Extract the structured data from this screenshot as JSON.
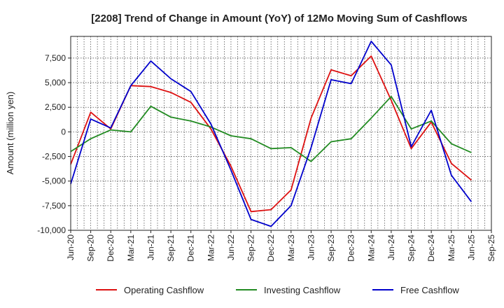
{
  "chart_data": {
    "type": "line",
    "title": "[2208]  Trend of Change in Amount (YoY) of 12Mo Moving Sum of Cashflows",
    "xlabel": "",
    "ylabel": "Amount (million yen)",
    "ylim": [
      -10000,
      9700
    ],
    "yticks": [
      -10000,
      -7500,
      -5000,
      -2500,
      0,
      2500,
      5000,
      7500
    ],
    "ytick_labels": [
      "-10,000",
      "-7,500",
      "-5,000",
      "-2,500",
      "0",
      "2,500",
      "5,000",
      "7,500"
    ],
    "categories": [
      "Jun-20",
      "Sep-20",
      "Dec-20",
      "Mar-21",
      "Jun-21",
      "Sep-21",
      "Dec-21",
      "Mar-22",
      "Jun-22",
      "Sep-22",
      "Dec-22",
      "Mar-23",
      "Jun-23",
      "Sep-23",
      "Dec-23",
      "Mar-24",
      "Jun-24",
      "Sep-24",
      "Dec-24",
      "Mar-25",
      "Jun-25",
      "Sep-25"
    ],
    "grid": true,
    "legend_position": "bottom",
    "series": [
      {
        "name": "Operating Cashflow",
        "color": "#dd1111",
        "values": [
          -3300,
          2000,
          300,
          4700,
          4600,
          4000,
          3000,
          300,
          -3500,
          -8100,
          -7900,
          -5900,
          1400,
          6300,
          5700,
          7700,
          3200,
          -1700,
          1000,
          -3200,
          -4900,
          null
        ]
      },
      {
        "name": "Investing Cashflow",
        "color": "#228b22",
        "values": [
          -2000,
          -700,
          200,
          0,
          2600,
          1500,
          1100,
          500,
          -400,
          -700,
          -1700,
          -1600,
          -3000,
          -1000,
          -700,
          1400,
          3600,
          300,
          1100,
          -1200,
          -2100,
          null
        ]
      },
      {
        "name": "Free Cashflow",
        "color": "#0000cc",
        "values": [
          -5300,
          1300,
          400,
          4700,
          7200,
          5400,
          4100,
          800,
          -3900,
          -8900,
          -9600,
          -7500,
          -1600,
          5300,
          4900,
          9200,
          6800,
          -1500,
          2200,
          -4400,
          -7100,
          null
        ]
      }
    ]
  }
}
